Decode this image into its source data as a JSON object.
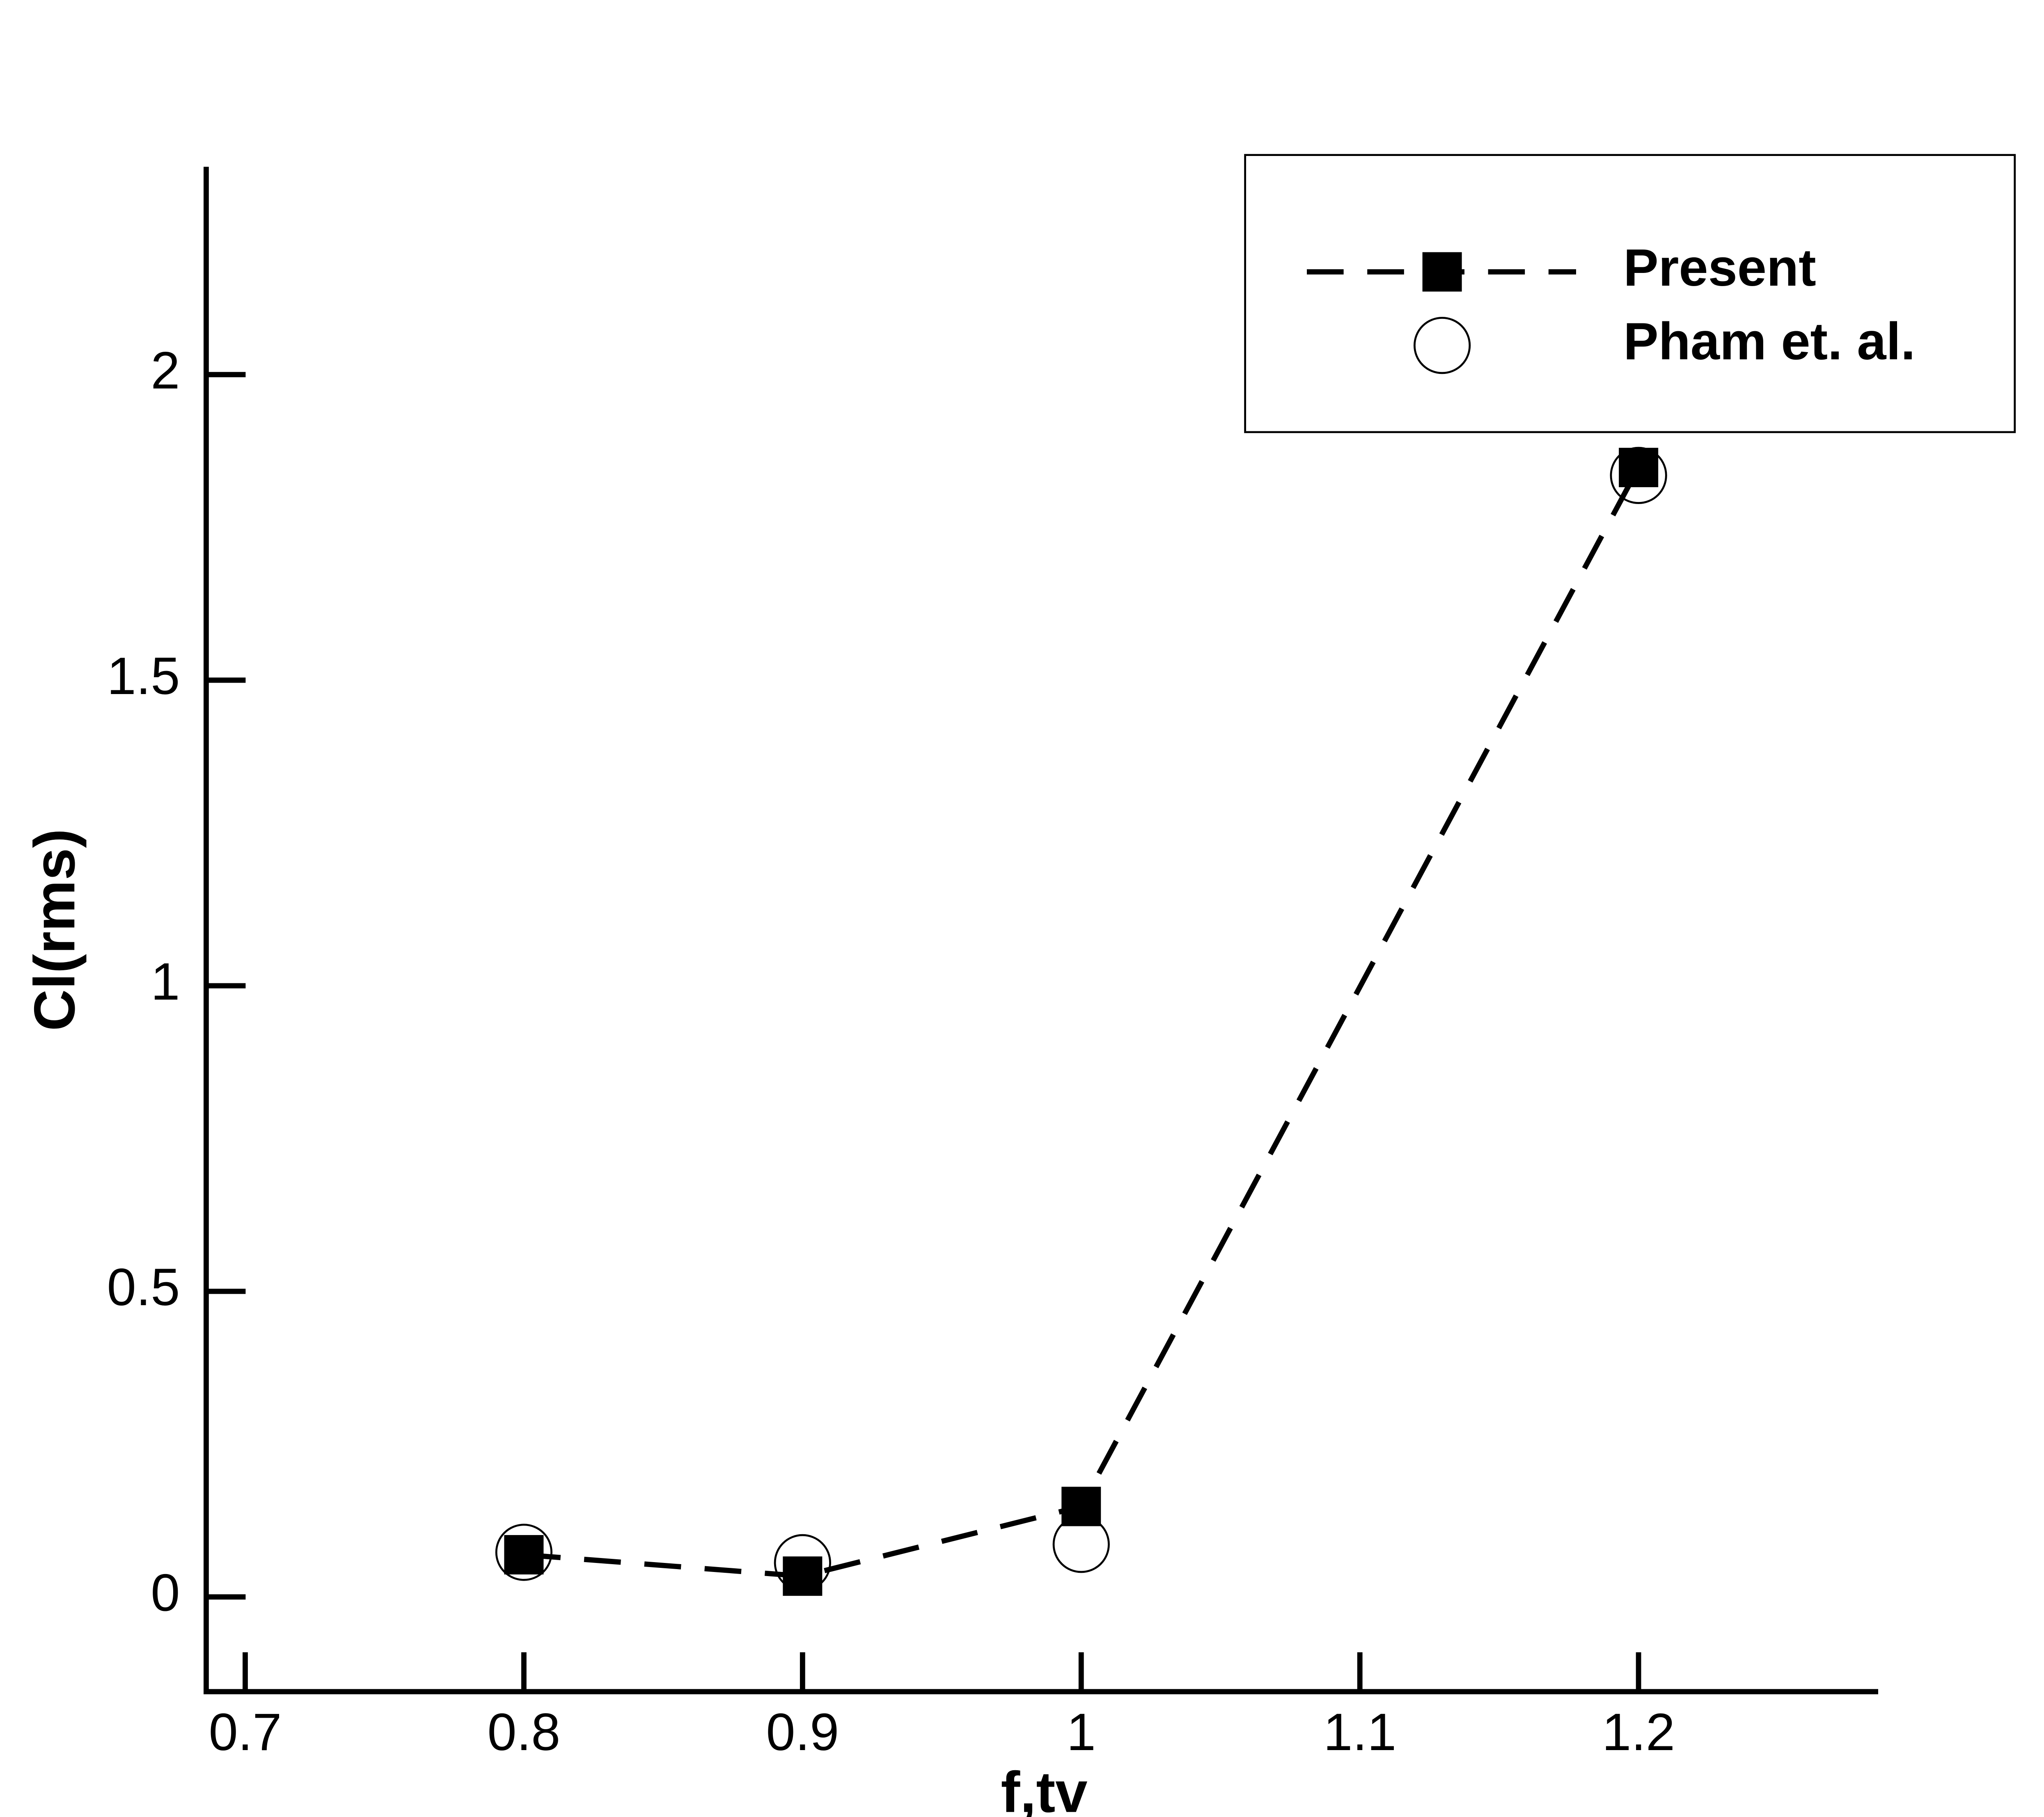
{
  "chart_data": {
    "type": "line",
    "x_label": "f,tv",
    "y_label": "Cl(rms)",
    "series": [
      {
        "name": "Present",
        "color": "#000000",
        "line": "dashed",
        "marker": "square",
        "x": [
          0.8,
          0.9,
          1.0,
          1.2
        ],
        "values": [
          0.069,
          0.034,
          0.148,
          1.848
        ]
      },
      {
        "name": "Pham et. al.",
        "color": "#000000",
        "line": "none",
        "marker": "circle",
        "x": [
          0.8,
          0.9,
          1.0,
          1.2
        ],
        "values": [
          0.073,
          0.056,
          0.086,
          1.835
        ]
      }
    ],
    "xlim": [
      0.686,
      1.286
    ],
    "xticks": [
      0.7,
      0.8,
      0.9,
      {
        "value": 1,
        "label": "1"
      },
      1.1,
      1.2
    ],
    "ylim": [
      -0.155,
      2.34
    ],
    "yticks": [
      0,
      0.5,
      1,
      1.5,
      2
    ],
    "grid": false,
    "legend": "top-right"
  }
}
